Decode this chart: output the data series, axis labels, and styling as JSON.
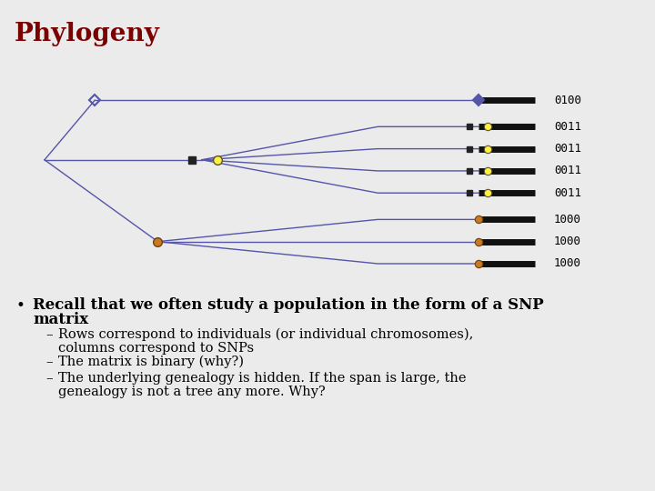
{
  "title": "Phylogeny",
  "title_color": "#7B0000",
  "background_color": "#EBEBEB",
  "header_line_color": "#555555",
  "snp_labels": [
    "0100",
    "0011",
    "0011",
    "0011",
    "0011",
    "1000",
    "1000",
    "1000"
  ],
  "bullet_main": "Recall that we often study a population in the form of a SNP\nmatrix",
  "sub_bullets": [
    "Rows correspond to individuals (or individual chromosomes),\ncolumns correspond to SNPs",
    "The matrix is binary (why?)",
    "The underlying genealogy is hidden. If the span is large, the\ngenealogy is not a tree any more. Why?"
  ],
  "tree_color": "#5555AA",
  "bar_color": "#111111",
  "node_yellow_face": "#FFEE44",
  "node_dark_face": "#222222",
  "node_orange_face": "#CC7722"
}
